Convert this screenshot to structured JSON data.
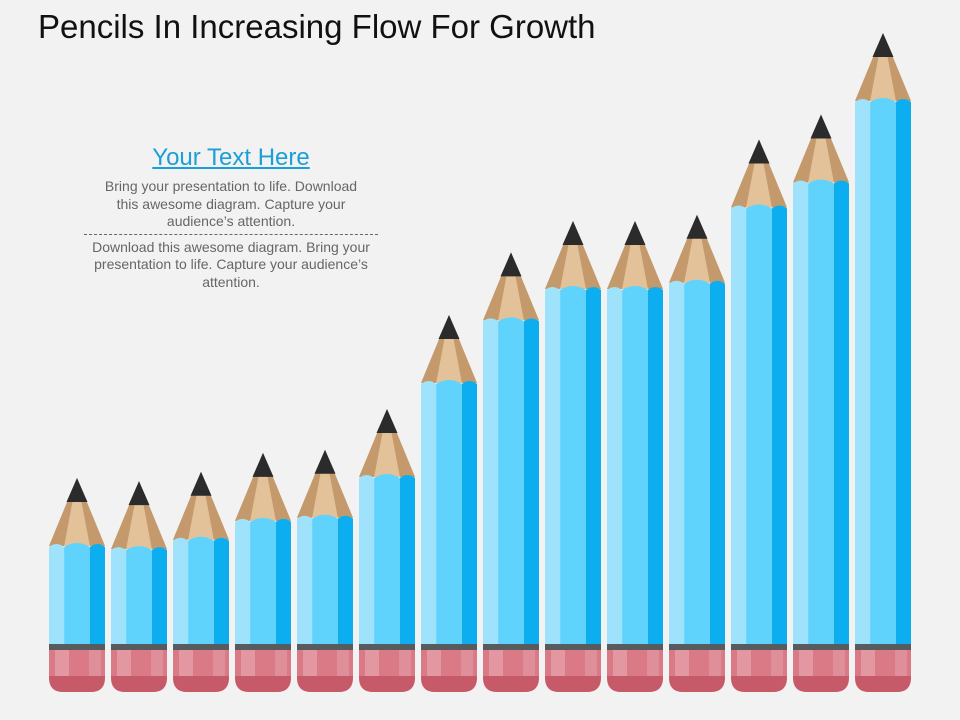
{
  "title": "Pencils In Increasing Flow For Growth",
  "text_block": {
    "heading": "Your Text Here",
    "paragraph_1": "Bring your presentation to life. Download this awesome diagram. Capture your audience’s attention.",
    "paragraph_2": "Download this awesome diagram. Bring your presentation to life. Capture your audience’s attention."
  },
  "pencil_levels": [
    0.29,
    0.285,
    0.3,
    0.33,
    0.335,
    0.4,
    0.55,
    0.65,
    0.7,
    0.7,
    0.71,
    0.83,
    0.87,
    1.0
  ],
  "colors": {
    "body_light": "#9ee3fb",
    "body_mid": "#5fd3fb",
    "body_dark": "#0caeef",
    "wood_light": "#e3c29a",
    "wood_dark": "#c49a6c",
    "lead": "#2b2b2b",
    "ferrule": "#585b5e",
    "eraser_light": "#e6a4ad",
    "eraser_mid": "#d97a86",
    "eraser_dark": "#c75a68"
  }
}
